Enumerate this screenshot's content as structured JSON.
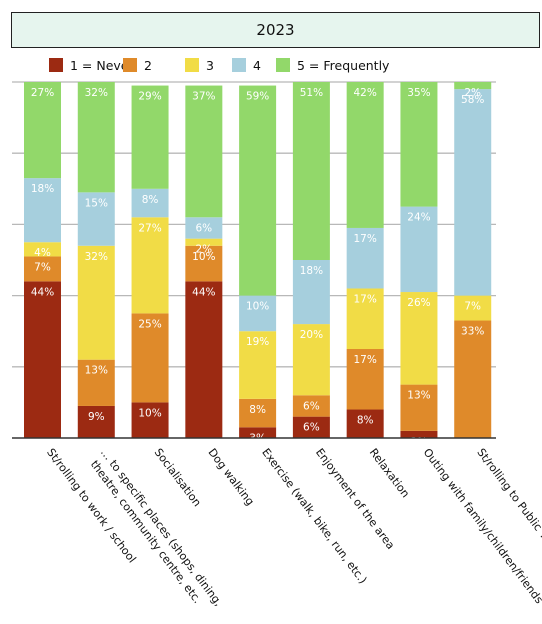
{
  "colors": {
    "s1": "#9c2a12",
    "s2": "#df8a2a",
    "s3": "#f1dc46",
    "s4": "#a6cfdd",
    "s5": "#92d86a",
    "grid": "#b8b8b8",
    "axis": "#333333",
    "value_label": "#ffffff",
    "text": "#111111"
  },
  "chart_data": {
    "type": "bar",
    "stacked": true,
    "title": "2023",
    "categories": [
      "St/rolling to work / school",
      "… to specific places (shops, dining, theatre, community centre, etc.",
      "Socialisation",
      "Dog walking",
      "Exercise (walk, bike, run, etc.)",
      "Enjoyment of the area",
      "Relaxation",
      "Outing with family/children/friends",
      "St/rolling to Public Transit"
    ],
    "series": [
      {
        "name": "1 = Never",
        "values": [
          44,
          9,
          10,
          44,
          3,
          6,
          8,
          2,
          0
        ]
      },
      {
        "name": "2",
        "values": [
          7,
          13,
          25,
          10,
          8,
          6,
          17,
          13,
          33
        ]
      },
      {
        "name": "3",
        "values": [
          4,
          32,
          27,
          2,
          19,
          20,
          17,
          26,
          7
        ]
      },
      {
        "name": "4",
        "values": [
          18,
          15,
          8,
          6,
          10,
          18,
          17,
          24,
          58
        ]
      },
      {
        "name": "5 = Frequently",
        "values": [
          27,
          32,
          29,
          37,
          59,
          51,
          42,
          35,
          2
        ]
      }
    ],
    "ylim": [
      0,
      100
    ],
    "grid": true,
    "legend_position": "top"
  }
}
